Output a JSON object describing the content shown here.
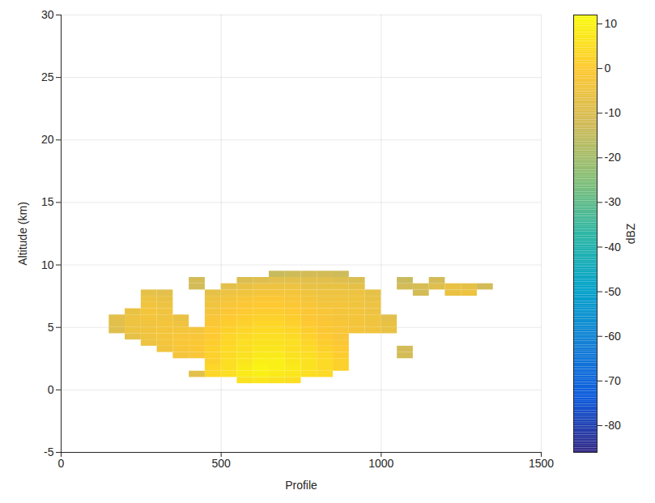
{
  "chart_data": {
    "type": "heatmap",
    "x_label": "Profile",
    "y_label": "Altitude (km)",
    "xlim": [
      0,
      1500
    ],
    "xticks": [
      0,
      500,
      1000,
      1500
    ],
    "ylim": [
      -5,
      30
    ],
    "yticks": [
      -5,
      0,
      5,
      10,
      15,
      20,
      25,
      30
    ],
    "grid": true,
    "colorbar": {
      "label": "dBZ",
      "range": [
        -86,
        12
      ],
      "ticks": [
        10,
        0,
        -10,
        -20,
        -30,
        -40,
        -50,
        -60,
        -70,
        -80
      ]
    },
    "x_edges": [
      0,
      50,
      100,
      150,
      200,
      250,
      300,
      350,
      400,
      450,
      500,
      550,
      600,
      650,
      700,
      750,
      800,
      850,
      900,
      950,
      1000,
      1050,
      1100,
      1150,
      1200,
      1250,
      1300,
      1350,
      1400
    ],
    "y_edges": [
      0.5,
      1,
      1.5,
      2,
      2.5,
      3,
      3.5,
      4,
      4.5,
      5,
      5.5,
      6,
      6.5,
      7,
      7.5,
      8,
      8.5,
      9,
      9.5
    ],
    "z": [
      [
        null,
        null,
        null,
        null,
        null,
        null,
        null,
        null,
        null,
        null,
        null,
        6,
        7,
        6,
        5,
        null,
        null,
        null,
        null,
        null,
        null,
        null,
        null,
        null,
        null,
        null,
        null,
        null
      ],
      [
        null,
        null,
        null,
        null,
        null,
        null,
        null,
        null,
        -8,
        3,
        5,
        8,
        9,
        8,
        7,
        5,
        4,
        null,
        null,
        null,
        null,
        null,
        null,
        null,
        null,
        null,
        null,
        null
      ],
      [
        null,
        null,
        null,
        null,
        null,
        null,
        null,
        null,
        null,
        3,
        5,
        8,
        10,
        9,
        8,
        6,
        4,
        2,
        null,
        null,
        null,
        null,
        null,
        null,
        null,
        null,
        null,
        null
      ],
      [
        null,
        null,
        null,
        null,
        null,
        null,
        null,
        null,
        null,
        2,
        5,
        7,
        9,
        9,
        7,
        6,
        4,
        2,
        null,
        null,
        null,
        null,
        null,
        null,
        null,
        null,
        null,
        null
      ],
      [
        null,
        null,
        null,
        null,
        null,
        null,
        null,
        -3,
        -2,
        2,
        4,
        6,
        8,
        8,
        6,
        5,
        3,
        1,
        null,
        null,
        null,
        -12,
        null,
        null,
        null,
        null,
        null,
        null
      ],
      [
        null,
        null,
        null,
        null,
        null,
        null,
        -4,
        -2,
        -1,
        2,
        4,
        5,
        7,
        7,
        5,
        4,
        2,
        0,
        null,
        null,
        null,
        -12,
        null,
        null,
        null,
        null,
        null,
        null
      ],
      [
        null,
        null,
        null,
        null,
        null,
        -5,
        -3,
        -2,
        -1,
        1,
        3,
        5,
        6,
        6,
        5,
        3,
        1,
        -1,
        null,
        null,
        null,
        null,
        null,
        null,
        null,
        null,
        null,
        null
      ],
      [
        null,
        null,
        null,
        null,
        -7,
        -4,
        -3,
        -2,
        -2,
        0,
        3,
        4,
        5,
        5,
        4,
        2,
        0,
        -2,
        null,
        null,
        null,
        null,
        null,
        null,
        null,
        null,
        null,
        null
      ],
      [
        null,
        null,
        null,
        -9,
        -5,
        -4,
        -3,
        -3,
        -3,
        0,
        2,
        3,
        4,
        4,
        3,
        1,
        -1,
        -2,
        -3,
        -4,
        -6,
        null,
        null,
        null,
        null,
        null,
        null,
        null
      ],
      [
        null,
        null,
        null,
        -8,
        -5,
        -4,
        -3,
        -4,
        null,
        -1,
        1,
        2,
        3,
        3,
        2,
        0,
        -1,
        -2,
        -3,
        -4,
        -6,
        null,
        null,
        null,
        null,
        null,
        null,
        null
      ],
      [
        null,
        null,
        null,
        -8,
        -5,
        -3,
        -4,
        -6,
        null,
        -2,
        0,
        1,
        2,
        2,
        1,
        -1,
        -2,
        -3,
        -3,
        -4,
        -8,
        null,
        null,
        null,
        null,
        null,
        null,
        null
      ],
      [
        null,
        null,
        null,
        null,
        -6,
        -3,
        -4,
        null,
        null,
        -3,
        -1,
        0,
        1,
        1,
        0,
        -1,
        -2,
        -3,
        -3,
        -5,
        null,
        null,
        null,
        null,
        null,
        null,
        null,
        null
      ],
      [
        null,
        null,
        null,
        null,
        null,
        -4,
        -5,
        null,
        null,
        -4,
        -2,
        -1,
        0,
        0,
        -1,
        -2,
        -3,
        -3,
        -4,
        -5,
        null,
        null,
        null,
        null,
        null,
        null,
        null,
        null
      ],
      [
        null,
        null,
        null,
        null,
        null,
        -5,
        -6,
        null,
        null,
        -5,
        -3,
        -2,
        -1,
        -1,
        -2,
        -3,
        -4,
        -4,
        -4,
        -6,
        null,
        null,
        null,
        null,
        null,
        null,
        null,
        null
      ],
      [
        null,
        null,
        null,
        null,
        null,
        -7,
        -8,
        null,
        null,
        -7,
        -5,
        -4,
        -3,
        -3,
        -3,
        -4,
        -5,
        -5,
        -5,
        -7,
        null,
        null,
        -12,
        null,
        -6,
        -5,
        null,
        null
      ],
      [
        null,
        null,
        null,
        null,
        null,
        null,
        null,
        null,
        -12,
        null,
        -8,
        -6,
        -5,
        -5,
        -5,
        -6,
        -6,
        -6,
        -7,
        null,
        null,
        -12,
        -11,
        -9,
        -6,
        -7,
        -12,
        null
      ],
      [
        null,
        null,
        null,
        null,
        null,
        null,
        null,
        null,
        -12,
        null,
        null,
        -10,
        -9,
        -8,
        -8,
        -8,
        -8,
        -9,
        -10,
        null,
        null,
        -14,
        null,
        -12,
        null,
        null,
        null,
        null
      ],
      [
        null,
        null,
        null,
        null,
        null,
        null,
        null,
        null,
        null,
        null,
        null,
        null,
        null,
        -14,
        -13,
        -12,
        -12,
        -13,
        null,
        null,
        null,
        null,
        null,
        null,
        null,
        null,
        null,
        null
      ]
    ]
  }
}
